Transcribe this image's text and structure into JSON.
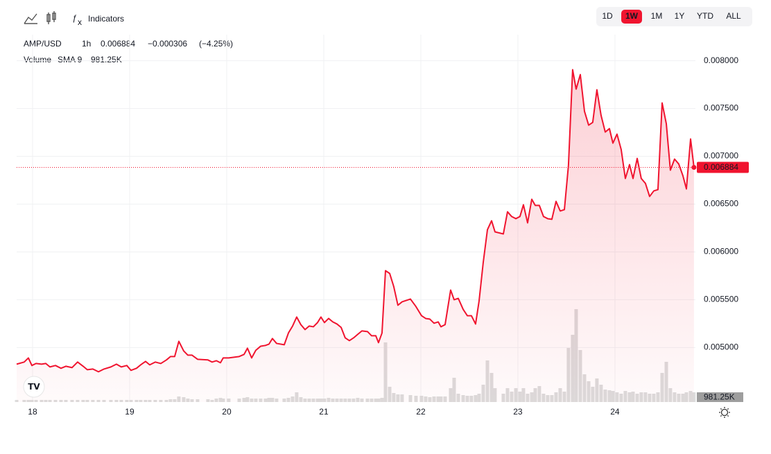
{
  "toolbar": {
    "indicators": "Indicators",
    "ranges": [
      "1D",
      "1W",
      "1M",
      "1Y",
      "YTD",
      "ALL"
    ],
    "active_range": "1W"
  },
  "chart_data": {
    "type": "line",
    "title": "AMP/USD",
    "interval": "1h",
    "change": {
      "value": -0.000306,
      "label": "−0.000306"
    },
    "change_percent": {
      "value": -4.25,
      "label": "(−4.25%)"
    },
    "xlim": [
      17.836,
      24.829
    ],
    "xticks": [
      18,
      19,
      20,
      21,
      22,
      23,
      24
    ],
    "ylim": [
      0.00443,
      0.0082
    ],
    "yticks": [
      {
        "value": 0.005,
        "label": "0.005000"
      },
      {
        "value": 0.0055,
        "label": "0.005500"
      },
      {
        "value": 0.006,
        "label": "0.006000"
      },
      {
        "value": 0.0065,
        "label": "0.006500"
      },
      {
        "value": 0.007,
        "label": "0.007000"
      },
      {
        "value": 0.0075,
        "label": "0.007500"
      },
      {
        "value": 0.008,
        "label": "0.008000"
      }
    ],
    "y2lim": [
      0,
      36400000
    ],
    "grid": true,
    "x": [
      17.836,
      17.914,
      17.957,
      17.993,
      18.036,
      18.093,
      18.136,
      18.179,
      18.236,
      18.293,
      18.343,
      18.407,
      18.464,
      18.521,
      18.564,
      18.621,
      18.679,
      18.736,
      18.807,
      18.864,
      18.914,
      18.971,
      19.014,
      19.071,
      19.114,
      19.164,
      19.207,
      19.264,
      19.321,
      19.379,
      19.421,
      19.464,
      19.507,
      19.557,
      19.6,
      19.643,
      19.7,
      19.807,
      19.85,
      19.893,
      19.936,
      19.964,
      20.021,
      20.129,
      20.179,
      20.214,
      20.257,
      20.3,
      20.35,
      20.4,
      20.436,
      20.471,
      20.514,
      20.593,
      20.636,
      20.679,
      20.721,
      20.764,
      20.807,
      20.85,
      20.893,
      20.936,
      20.971,
      21.007,
      21.05,
      21.093,
      21.136,
      21.179,
      21.221,
      21.264,
      21.307,
      21.35,
      21.393,
      21.45,
      21.493,
      21.536,
      21.564,
      21.6,
      21.636,
      21.679,
      21.721,
      21.764,
      21.807,
      21.893,
      21.95,
      22.007,
      22.05,
      22.093,
      22.136,
      22.179,
      22.207,
      22.25,
      22.307,
      22.343,
      22.386,
      22.436,
      22.479,
      22.521,
      22.564,
      22.6,
      22.643,
      22.686,
      22.729,
      22.764,
      22.85,
      22.893,
      22.936,
      22.979,
      23.021,
      23.057,
      23.1,
      23.143,
      23.179,
      23.221,
      23.264,
      23.307,
      23.35,
      23.393,
      23.436,
      23.479,
      23.521,
      23.564,
      23.6,
      23.643,
      23.686,
      23.729,
      23.771,
      23.814,
      23.857,
      23.9,
      23.943,
      23.979,
      24.021,
      24.064,
      24.107,
      24.15,
      24.186,
      24.229,
      24.271,
      24.314,
      24.357,
      24.4,
      24.443,
      24.486,
      24.529,
      24.571,
      24.614,
      24.657,
      24.7,
      24.736,
      24.779,
      24.814
    ],
    "series": [
      {
        "color": "#f0142f",
        "values": [
          0.004826,
          0.004848,
          0.004891,
          0.004812,
          0.004833,
          0.004826,
          0.004833,
          0.004797,
          0.004812,
          0.004783,
          0.004804,
          0.00479,
          0.004848,
          0.004804,
          0.004768,
          0.004775,
          0.004746,
          0.004775,
          0.004797,
          0.004826,
          0.004797,
          0.004812,
          0.004761,
          0.004783,
          0.004819,
          0.004855,
          0.004819,
          0.004848,
          0.004833,
          0.00487,
          0.004906,
          0.004906,
          0.005065,
          0.004964,
          0.00492,
          0.00492,
          0.004877,
          0.00487,
          0.004848,
          0.004862,
          0.004841,
          0.004891,
          0.004891,
          0.004906,
          0.004928,
          0.004993,
          0.004891,
          0.004971,
          0.005014,
          0.005022,
          0.005036,
          0.005094,
          0.005043,
          0.005029,
          0.005152,
          0.005225,
          0.005319,
          0.005239,
          0.005188,
          0.005225,
          0.005217,
          0.005261,
          0.005319,
          0.005261,
          0.005304,
          0.005268,
          0.005246,
          0.00521,
          0.005101,
          0.005072,
          0.005101,
          0.005138,
          0.005174,
          0.005167,
          0.005123,
          0.005123,
          0.005051,
          0.005152,
          0.005804,
          0.005775,
          0.005638,
          0.005442,
          0.005478,
          0.005507,
          0.005428,
          0.005333,
          0.005304,
          0.005297,
          0.005254,
          0.005268,
          0.005217,
          0.005239,
          0.005601,
          0.0055,
          0.005514,
          0.005399,
          0.005333,
          0.005333,
          0.005246,
          0.005486,
          0.005891,
          0.006232,
          0.006326,
          0.00621,
          0.006188,
          0.00642,
          0.00637,
          0.006348,
          0.00637,
          0.006493,
          0.006304,
          0.006551,
          0.006486,
          0.006486,
          0.00637,
          0.006348,
          0.006341,
          0.006529,
          0.006428,
          0.006442,
          0.006906,
          0.007906,
          0.007703,
          0.007855,
          0.007471,
          0.007326,
          0.007355,
          0.007696,
          0.007428,
          0.007254,
          0.00729,
          0.007138,
          0.007232,
          0.007072,
          0.006768,
          0.006913,
          0.006768,
          0.006978,
          0.006768,
          0.006717,
          0.00658,
          0.006638,
          0.006652,
          0.007558,
          0.007341,
          0.006855,
          0.006971,
          0.00692,
          0.006797,
          0.006659,
          0.007181,
          0.006884
        ]
      },
      {
        "name": "Volume",
        "indicator": "SMA 9",
        "type": "bar",
        "axis": "y2",
        "color": "#dcdcdc",
        "last_label": "981.25K",
        "values": [
          210000,
          210000,
          210000,
          210000,
          210000,
          210000,
          210000,
          210000,
          210000,
          210000,
          210000,
          210000,
          210000,
          210000,
          210000,
          210000,
          210000,
          210000,
          210000,
          210000,
          210000,
          210000,
          210000,
          210000,
          210000,
          210000,
          210000,
          210000,
          210000,
          210000,
          280000,
          280000,
          560000,
          490000,
          350000,
          280000,
          280000,
          280000,
          210000,
          350000,
          420000,
          350000,
          350000,
          350000,
          420000,
          490000,
          350000,
          350000,
          350000,
          350000,
          420000,
          420000,
          350000,
          350000,
          420000,
          560000,
          980000,
          490000,
          350000,
          350000,
          350000,
          350000,
          350000,
          350000,
          420000,
          350000,
          350000,
          350000,
          350000,
          350000,
          350000,
          420000,
          350000,
          350000,
          350000,
          350000,
          350000,
          420000,
          6020000,
          1540000,
          910000,
          770000,
          770000,
          700000,
          630000,
          630000,
          560000,
          490000,
          560000,
          560000,
          560000,
          560000,
          1400000,
          2450000,
          840000,
          700000,
          630000,
          630000,
          700000,
          840000,
          1750000,
          4200000,
          2940000,
          1400000,
          840000,
          1400000,
          1050000,
          1400000,
          1050000,
          1400000,
          840000,
          980000,
          1400000,
          1610000,
          840000,
          700000,
          700000,
          980000,
          1400000,
          1050000,
          5460000,
          6790000,
          9380000,
          5250000,
          2800000,
          2100000,
          1540000,
          2380000,
          1750000,
          1260000,
          1190000,
          1120000,
          980000,
          840000,
          1120000,
          980000,
          1050000,
          840000,
          980000,
          980000,
          840000,
          840000,
          980000,
          2940000,
          4060000,
          1400000,
          980000,
          840000,
          840000,
          980000,
          1120000,
          981250
        ]
      }
    ]
  }
}
